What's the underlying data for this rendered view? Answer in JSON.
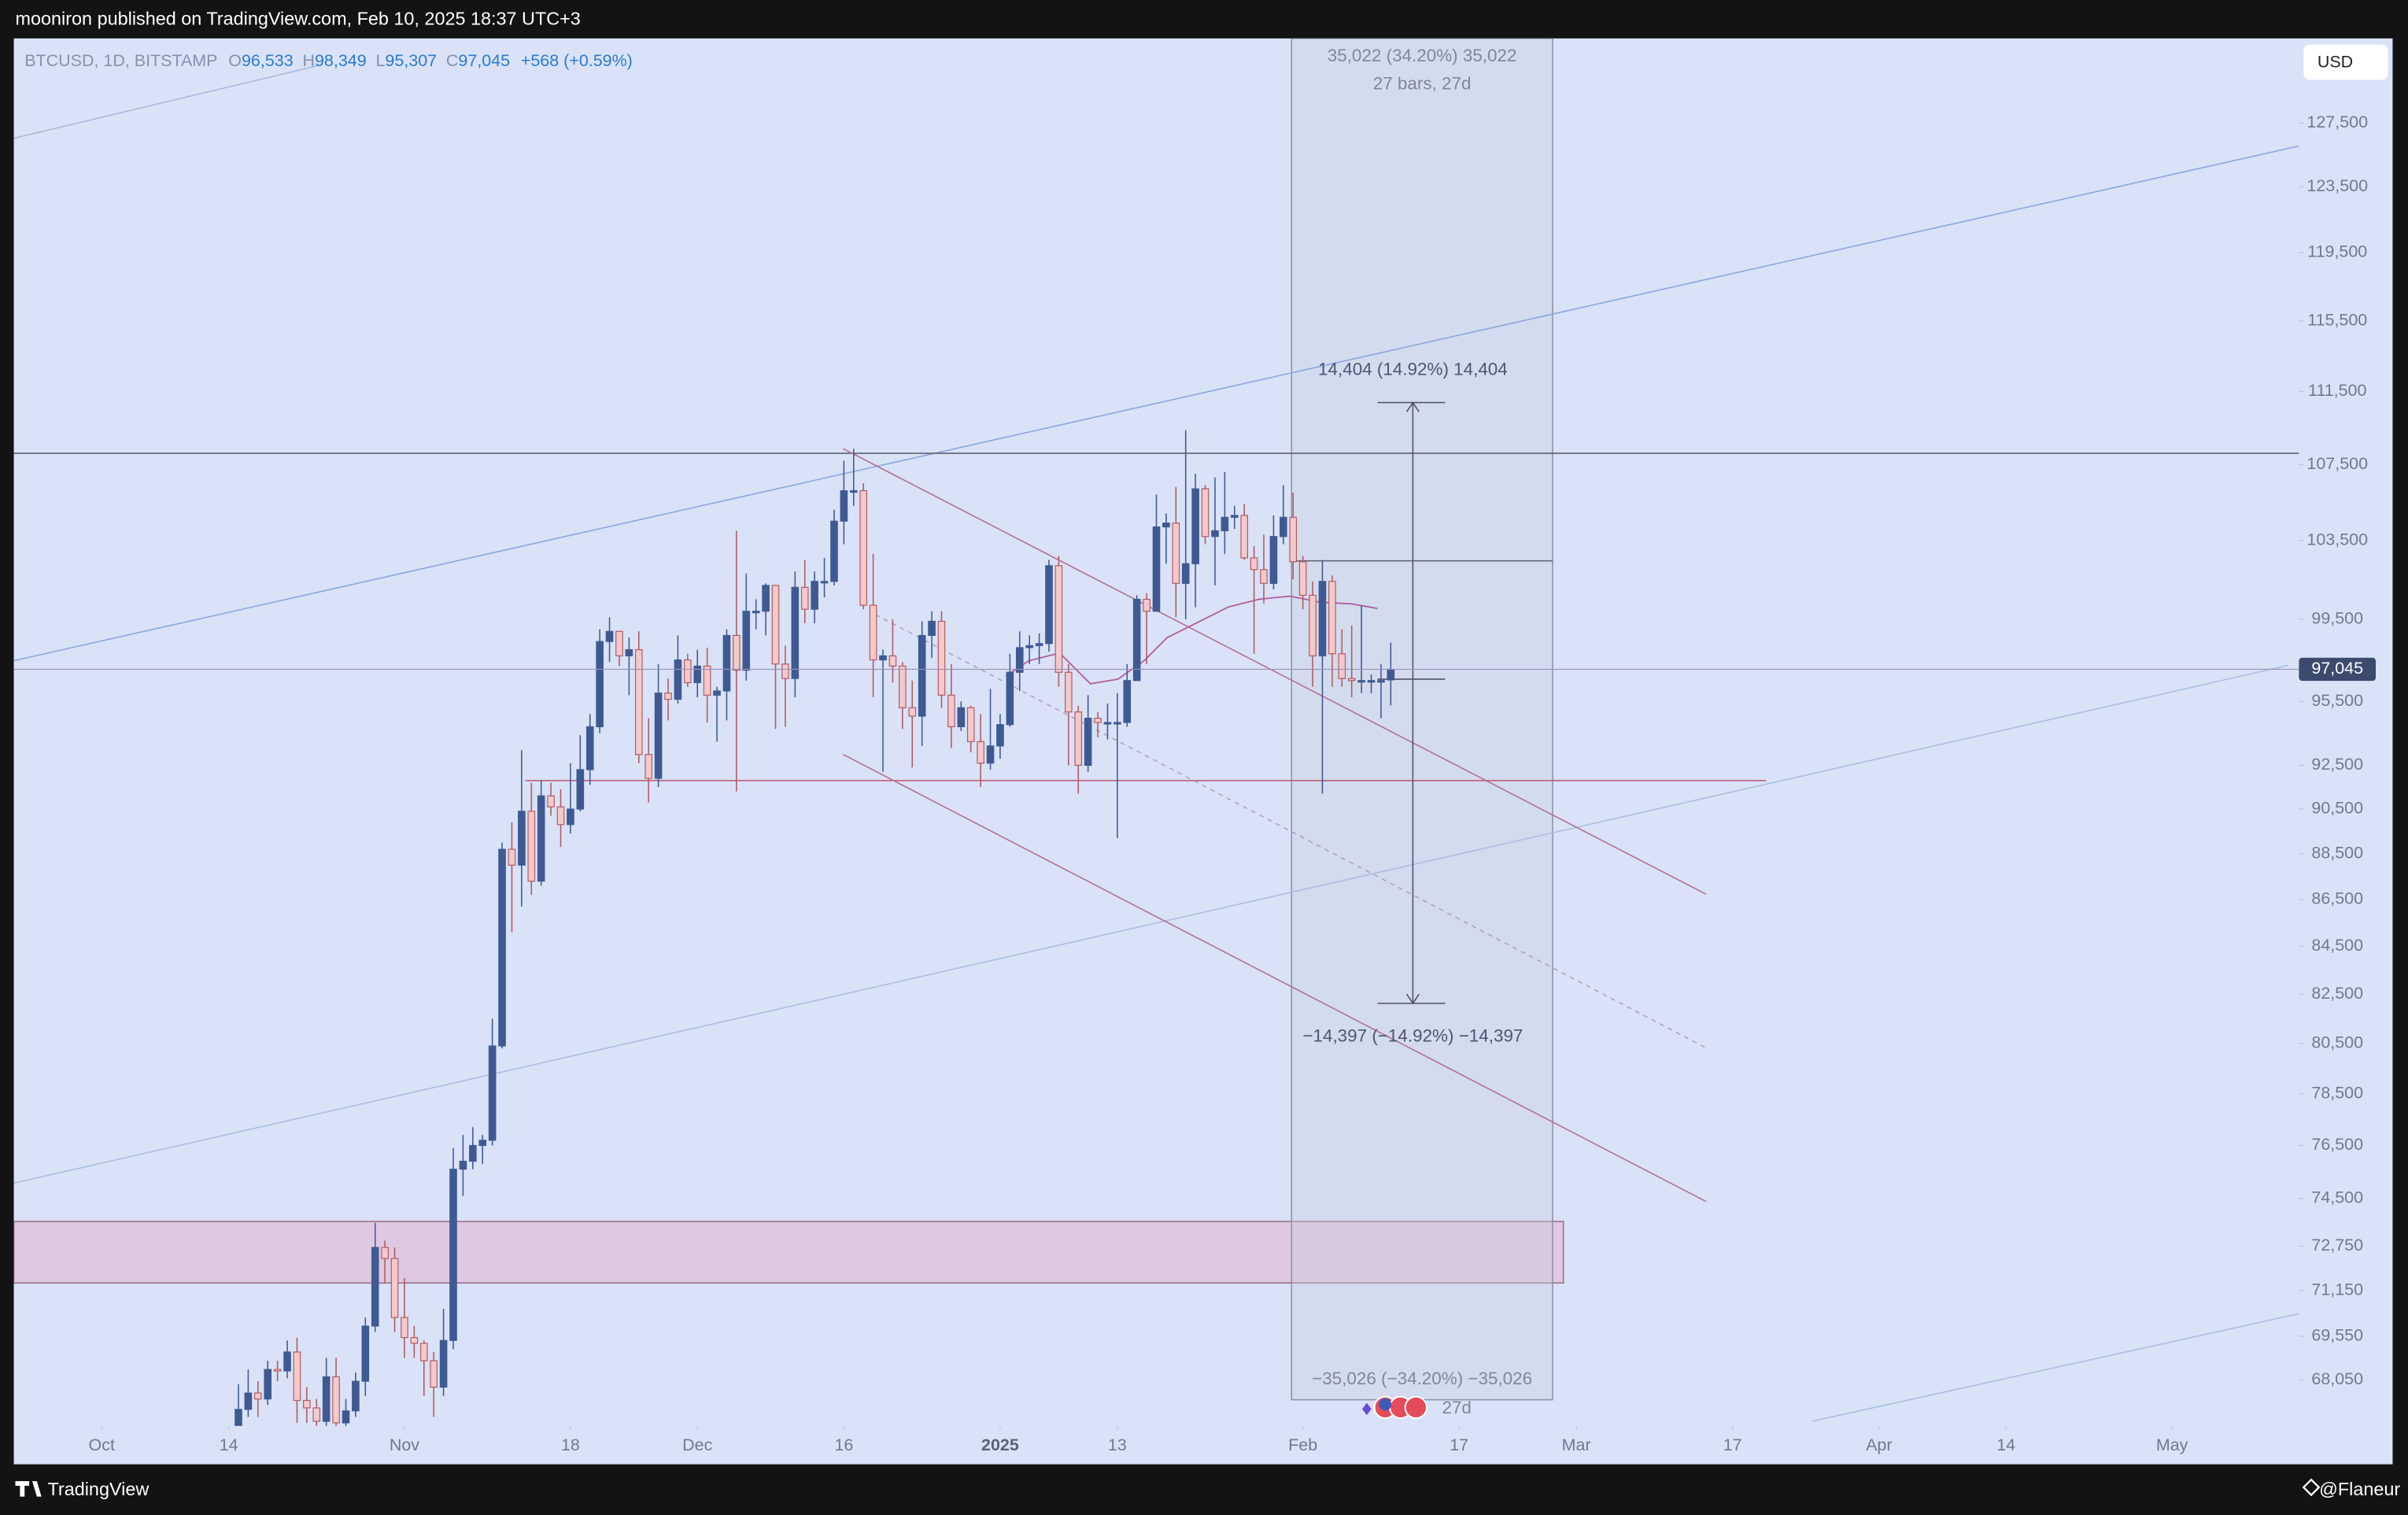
{
  "header": {
    "text": "mooniron published on TradingView.com, Feb 10, 2025 18:37 UTC+3"
  },
  "legend": {
    "symbol": "BTCUSD, 1D, BITSTAMP",
    "o_label": "O",
    "open": "96,533",
    "h_label": "H",
    "high": "98,349",
    "l_label": "L",
    "low": "95,307",
    "c_label": "C",
    "close": "97,045",
    "change": "+568 (+0.59%)"
  },
  "currency": "USD",
  "annotations": {
    "range_top": "35,022 (34.20%) 35,022",
    "range_bars": "27 bars, 27d",
    "up_move": "14,404 (14.92%) 14,404",
    "down_move": "−14,397 (−14.92%) −14,397",
    "range_bottom": "−35,026 (−34.20%) −35,026",
    "range_days": "27d"
  },
  "footer": {
    "brand": "TradingView",
    "author": "@Flaneur"
  },
  "chart_data": {
    "type": "candlestick",
    "log_scale": true,
    "grid": false,
    "up_color": "#3f5a92",
    "down_color": "#f3c9cb",
    "down_border": "#b25a60",
    "xlim": [
      "2024-09-22",
      "2025-05-14"
    ],
    "xticks": [
      {
        "value": "2024-10-01",
        "label": "Oct"
      },
      {
        "value": "2024-10-14",
        "label": "14"
      },
      {
        "value": "2024-11-01",
        "label": "Nov"
      },
      {
        "value": "2024-11-18",
        "label": "18"
      },
      {
        "value": "2024-12-01",
        "label": "Dec"
      },
      {
        "value": "2024-12-16",
        "label": "16"
      },
      {
        "value": "2025-01-01",
        "label": "2025"
      },
      {
        "value": "2025-01-13",
        "label": "13"
      },
      {
        "value": "2025-02-01",
        "label": "Feb"
      },
      {
        "value": "2025-02-17",
        "label": "17"
      },
      {
        "value": "2025-03-01",
        "label": "Mar"
      },
      {
        "value": "2025-03-17",
        "label": "17"
      },
      {
        "value": "2025-04-01",
        "label": "Apr"
      },
      {
        "value": "2025-04-14",
        "label": "14"
      },
      {
        "value": "2025-05-01",
        "label": "May"
      }
    ],
    "ylim": [
      66500,
      133000
    ],
    "yticks": [
      {
        "value": 127500,
        "label": "127,500"
      },
      {
        "value": 123500,
        "label": "123,500"
      },
      {
        "value": 119500,
        "label": "119,500"
      },
      {
        "value": 115500,
        "label": "115,500"
      },
      {
        "value": 111500,
        "label": "111,500"
      },
      {
        "value": 107500,
        "label": "107,500"
      },
      {
        "value": 103500,
        "label": "103,500"
      },
      {
        "value": 99500,
        "label": "99,500"
      },
      {
        "value": 95500,
        "label": "95,500"
      },
      {
        "value": 92500,
        "label": "92,500"
      },
      {
        "value": 90500,
        "label": "90,500"
      },
      {
        "value": 88500,
        "label": "88,500"
      },
      {
        "value": 86500,
        "label": "86,500"
      },
      {
        "value": 84500,
        "label": "84,500"
      },
      {
        "value": 82500,
        "label": "82,500"
      },
      {
        "value": 80500,
        "label": "80,500"
      },
      {
        "value": 78500,
        "label": "78,500"
      },
      {
        "value": 76500,
        "label": "76,500"
      },
      {
        "value": 74500,
        "label": "74,500"
      },
      {
        "value": 72750,
        "label": "72,750"
      },
      {
        "value": 71150,
        "label": "71,150"
      },
      {
        "value": 69550,
        "label": "69,550"
      },
      {
        "value": 68050,
        "label": "68,050"
      }
    ],
    "last_price": {
      "value": 97045,
      "label": "97,045"
    },
    "x": [
      "2024-10-15",
      "2024-10-16",
      "2024-10-17",
      "2024-10-18",
      "2024-10-19",
      "2024-10-20",
      "2024-10-21",
      "2024-10-22",
      "2024-10-23",
      "2024-10-24",
      "2024-10-25",
      "2024-10-26",
      "2024-10-27",
      "2024-10-28",
      "2024-10-29",
      "2024-10-30",
      "2024-10-31",
      "2024-11-01",
      "2024-11-02",
      "2024-11-03",
      "2024-11-04",
      "2024-11-05",
      "2024-11-06",
      "2024-11-07",
      "2024-11-08",
      "2024-11-09",
      "2024-11-10",
      "2024-11-11",
      "2024-11-12",
      "2024-11-13",
      "2024-11-14",
      "2024-11-15",
      "2024-11-16",
      "2024-11-17",
      "2024-11-18",
      "2024-11-19",
      "2024-11-20",
      "2024-11-21",
      "2024-11-22",
      "2024-11-23",
      "2024-11-24",
      "2024-11-25",
      "2024-11-26",
      "2024-11-27",
      "2024-11-28",
      "2024-11-29",
      "2024-11-30",
      "2024-12-01",
      "2024-12-02",
      "2024-12-03",
      "2024-12-04",
      "2024-12-05",
      "2024-12-06",
      "2024-12-07",
      "2024-12-08",
      "2024-12-09",
      "2024-12-10",
      "2024-12-11",
      "2024-12-12",
      "2024-12-13",
      "2024-12-14",
      "2024-12-15",
      "2024-12-16",
      "2024-12-17",
      "2024-12-18",
      "2024-12-19",
      "2024-12-20",
      "2024-12-21",
      "2024-12-22",
      "2024-12-23",
      "2024-12-24",
      "2024-12-25",
      "2024-12-26",
      "2024-12-27",
      "2024-12-28",
      "2024-12-29",
      "2024-12-30",
      "2024-12-31",
      "2025-01-01",
      "2025-01-02",
      "2025-01-03",
      "2025-01-04",
      "2025-01-05",
      "2025-01-06",
      "2025-01-07",
      "2025-01-08",
      "2025-01-09",
      "2025-01-10",
      "2025-01-11",
      "2025-01-12",
      "2025-01-13",
      "2025-01-14",
      "2025-01-15",
      "2025-01-16",
      "2025-01-17",
      "2025-01-18",
      "2025-01-19",
      "2025-01-20",
      "2025-01-21",
      "2025-01-22",
      "2025-01-23",
      "2025-01-24",
      "2025-01-25",
      "2025-01-26",
      "2025-01-27",
      "2025-01-28",
      "2025-01-29",
      "2025-01-30",
      "2025-01-31",
      "2025-02-01",
      "2025-02-02",
      "2025-02-03",
      "2025-02-04",
      "2025-02-05",
      "2025-02-06",
      "2025-02-07",
      "2025-02-08",
      "2025-02-09",
      "2025-02-10"
    ],
    "open": [
      66050,
      67050,
      67600,
      67400,
      68400,
      68350,
      69000,
      67350,
      67100,
      66650,
      68150,
      66600,
      67000,
      68000,
      69900,
      72700,
      72300,
      70200,
      69500,
      69300,
      68700,
      67800,
      69400,
      75600,
      75900,
      76500,
      76700,
      80400,
      88700,
      88000,
      90400,
      87300,
      91100,
      90600,
      89800,
      90500,
      92300,
      94300,
      98400,
      98900,
      97700,
      98000,
      93000,
      91900,
      95900,
      95600,
      97500,
      96400,
      97200,
      95800,
      96000,
      98700,
      97000,
      99900,
      99900,
      101200,
      97300,
      96600,
      101100,
      100000,
      101400,
      101400,
      104500,
      106100,
      106100,
      100200,
      97500,
      97700,
      97200,
      95200,
      94800,
      98700,
      99400,
      95800,
      94300,
      95200,
      93600,
      92600,
      93400,
      94400,
      96900,
      98100,
      98200,
      98300,
      102200,
      96900,
      95000,
      92500,
      94700,
      94500,
      94500,
      94500,
      96500,
      100500,
      99900,
      104200,
      104400,
      101300,
      102300,
      106200,
      103700,
      104000,
      104700,
      104800,
      102600,
      102000,
      101300,
      103700,
      104700,
      102400,
      100700,
      97700,
      101400,
      97800,
      96600,
      96500,
      96500,
      96500,
      96533
    ],
    "high": [
      67900,
      68400,
      68000,
      68700,
      68700,
      69400,
      69500,
      67800,
      67400,
      68800,
      68800,
      67400,
      68300,
      70200,
      73600,
      72950,
      72700,
      71600,
      69900,
      69400,
      69000,
      70500,
      76400,
      76900,
      77200,
      76900,
      81500,
      89000,
      89900,
      93200,
      91700,
      91800,
      91700,
      91400,
      92600,
      93900,
      94900,
      99000,
      99600,
      98900,
      98600,
      98900,
      94700,
      97300,
      96600,
      98700,
      97800,
      98000,
      98100,
      96200,
      99000,
      104000,
      101800,
      100500,
      101300,
      101200,
      98200,
      101900,
      102500,
      101900,
      102600,
      105100,
      107700,
      108350,
      106500,
      102800,
      98000,
      99500,
      97400,
      96500,
      99400,
      99900,
      99900,
      97300,
      95500,
      95300,
      94900,
      96100,
      94900,
      97800,
      98900,
      98700,
      98800,
      102500,
      102700,
      97300,
      95300,
      95800,
      95000,
      95400,
      95900,
      97300,
      100700,
      100800,
      105900,
      104900,
      106300,
      109350,
      107000,
      106400,
      106800,
      107100,
      105300,
      105400,
      103200,
      103800,
      104800,
      106400,
      106000,
      102700,
      101400,
      102500,
      101700,
      99000,
      99200,
      100200,
      96800,
      97300,
      98349
    ],
    "low": [
      64800,
      66800,
      66800,
      67200,
      68000,
      68100,
      66600,
      66600,
      65200,
      66500,
      65600,
      66500,
      66800,
      67500,
      69700,
      71400,
      69700,
      68800,
      68800,
      67500,
      66800,
      67500,
      69100,
      74600,
      75600,
      75800,
      76500,
      80300,
      85100,
      86200,
      86700,
      87100,
      90200,
      88800,
      89400,
      90400,
      91600,
      94000,
      97400,
      97200,
      95800,
      92600,
      90800,
      91500,
      94600,
      95400,
      96200,
      95700,
      94500,
      93600,
      94600,
      91300,
      96500,
      99000,
      98700,
      94200,
      94300,
      95700,
      99300,
      99300,
      100600,
      101200,
      103300,
      105300,
      100000,
      95700,
      92200,
      96400,
      94200,
      92400,
      93400,
      97600,
      95200,
      93300,
      94100,
      93100,
      91500,
      92300,
      92800,
      94300,
      96000,
      97300,
      97300,
      97900,
      96200,
      92500,
      91200,
      92200,
      93800,
      93700,
      89200,
      94300,
      96500,
      97300,
      99900,
      102300,
      99600,
      99500,
      100100,
      103300,
      101200,
      102800,
      104100,
      102500,
      97800,
      100300,
      101000,
      103300,
      101500,
      100000,
      96200,
      91200,
      96200,
      96200,
      95700,
      95900,
      95900,
      94700,
      95307
    ],
    "close": [
      67050,
      67600,
      67400,
      68400,
      68350,
      69000,
      67350,
      67100,
      66650,
      68150,
      66600,
      67000,
      68000,
      69900,
      72700,
      72300,
      70200,
      69500,
      69300,
      68700,
      67800,
      69400,
      75600,
      75900,
      76500,
      76700,
      80400,
      88700,
      88000,
      90400,
      87300,
      91100,
      90600,
      89800,
      90500,
      92300,
      94300,
      98400,
      98900,
      97700,
      98000,
      93000,
      91900,
      95900,
      95600,
      97500,
      96400,
      97200,
      95800,
      96000,
      98700,
      97000,
      99900,
      99900,
      101200,
      97300,
      96600,
      101100,
      100000,
      101400,
      101400,
      104500,
      106100,
      106100,
      100200,
      97500,
      97700,
      97200,
      95200,
      94800,
      98700,
      99400,
      95800,
      94300,
      95200,
      93600,
      92600,
      93400,
      94400,
      96900,
      98100,
      98200,
      98300,
      102200,
      96900,
      95000,
      92500,
      94700,
      94500,
      94500,
      94500,
      96500,
      100500,
      99900,
      104200,
      104400,
      101300,
      102300,
      106200,
      103700,
      104000,
      104700,
      104800,
      102600,
      102000,
      101300,
      103700,
      104700,
      102400,
      100700,
      97700,
      101400,
      97800,
      96600,
      96500,
      96500,
      96500,
      96500,
      97045
    ]
  }
}
